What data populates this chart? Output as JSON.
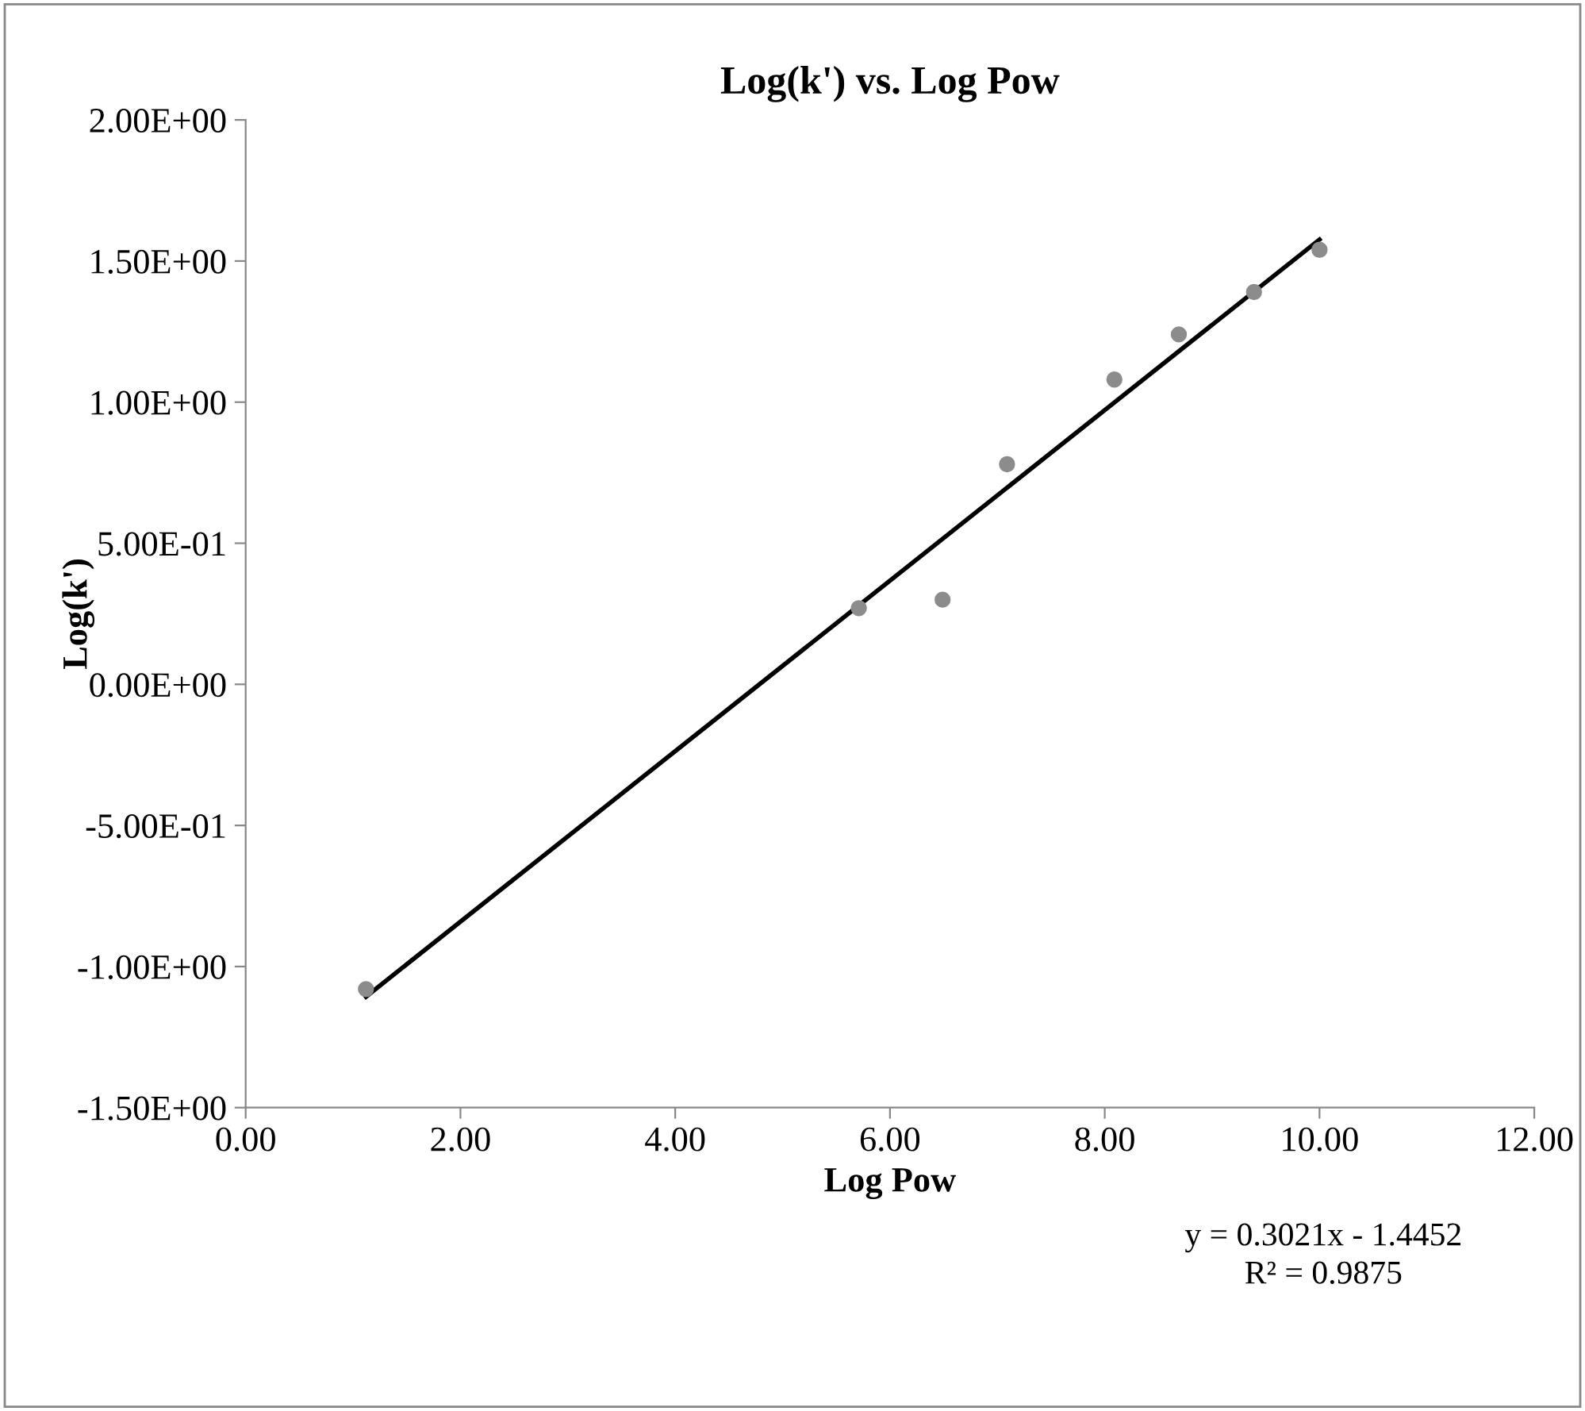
{
  "chart_data": {
    "type": "scatter",
    "title": "Log(k') vs. Log Pow",
    "xlabel": "Log Pow",
    "ylabel": "Log(k')",
    "series": [
      {
        "color": "#8c8c8c",
        "marker": "circle",
        "x": [
          1.12,
          5.71,
          6.49,
          7.09,
          8.09,
          8.69,
          9.39,
          10.0
        ],
        "values": [
          -1.08,
          0.27,
          0.3,
          0.78,
          1.08,
          1.24,
          1.39,
          1.54
        ]
      },
      {
        "type": "line",
        "marker": "none",
        "color": "#000000",
        "x": [
          1.12,
          10.0
        ],
        "values": [
          -1.107,
          1.576
        ]
      }
    ],
    "xlim": [
      0,
      12
    ],
    "xticks": [
      {
        "value": 0,
        "label": "0.00"
      },
      {
        "value": 2,
        "label": "2.00"
      },
      {
        "value": 4,
        "label": "4.00"
      },
      {
        "value": 6,
        "label": "6.00"
      },
      {
        "value": 8,
        "label": "8.00"
      },
      {
        "value": 10,
        "label": "10.00"
      },
      {
        "value": 12,
        "label": "12.00"
      }
    ],
    "ylim": [
      -1.5,
      2
    ],
    "yticks": [
      {
        "value": -1.5,
        "label": "-1.50E+00"
      },
      {
        "value": -1,
        "label": "-1.00E+00"
      },
      {
        "value": -0.5,
        "label": "-5.00E-01"
      },
      {
        "value": 0,
        "label": "0.00E+00"
      },
      {
        "value": 0.5,
        "label": "5.00E-01"
      },
      {
        "value": 1,
        "label": "1.00E+00"
      },
      {
        "value": 1.5,
        "label": "1.50E+00"
      },
      {
        "value": 2,
        "label": "2.00E+00"
      }
    ],
    "grid": false,
    "legend": false,
    "annotations": [
      "y = 0.3021x - 1.4452",
      "R² = 0.9875"
    ]
  }
}
